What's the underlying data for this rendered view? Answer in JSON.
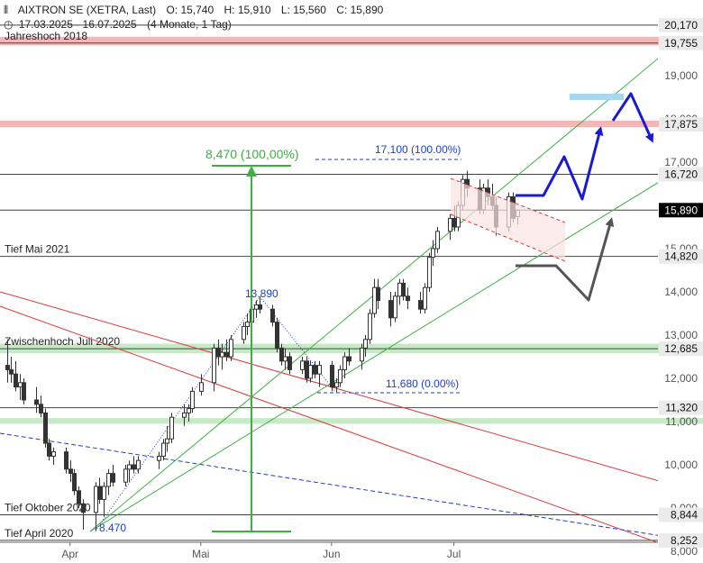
{
  "header": {
    "icon": "candlestick-icon",
    "instrument": "AIXTRON SE (XETRA, Last)",
    "open": "O: 15,740",
    "high": "H: 15,910",
    "low": "L: 15,560",
    "close": "C: 15,890",
    "clock_icon": "clock-icon",
    "period": "17.03.2025 - 16.07.2025",
    "period_detail": "(4 Monate, 1 Tag)"
  },
  "chart_data": {
    "type": "candlestick",
    "y_range": [
      7.9,
      20.5
    ],
    "x_axis_ticks": [
      {
        "label": "Apr",
        "date": "2025-04-01"
      },
      {
        "label": "Mai",
        "date": "2025-05-02"
      },
      {
        "label": "Jun",
        "date": "2025-06-02"
      },
      {
        "label": "Jul",
        "date": "2025-07-01"
      }
    ],
    "y_axis_ticks": [
      {
        "value": 10.0,
        "label": "10,000"
      },
      {
        "value": 11.0,
        "label": "11,000"
      },
      {
        "value": 12.0,
        "label": "12,000"
      },
      {
        "value": 13.0,
        "label": "13,000"
      },
      {
        "value": 14.0,
        "label": "14,000"
      },
      {
        "value": 15.0,
        "label": "15,000"
      },
      {
        "value": 17.0,
        "label": "17,000"
      },
      {
        "value": 18.0,
        "label": "18,000"
      },
      {
        "value": 19.0,
        "label": "19,000"
      },
      {
        "value": 8.0,
        "label": "8,000"
      },
      {
        "value": 9.0,
        "label": "9,000"
      }
    ],
    "price_badges": [
      {
        "value": 20.17,
        "label": "20,170"
      },
      {
        "value": 19.755,
        "label": "19,755"
      },
      {
        "value": 17.875,
        "label": "17,875"
      },
      {
        "value": 16.72,
        "label": "16,720"
      },
      {
        "value": 15.89,
        "label": "15,890",
        "current": true
      },
      {
        "value": 14.82,
        "label": "14,820"
      },
      {
        "value": 12.685,
        "label": "12,685"
      },
      {
        "value": 11.32,
        "label": "11,320"
      },
      {
        "value": 8.844,
        "label": "8,844"
      },
      {
        "value": 8.252,
        "label": "8,252"
      }
    ],
    "horizontal_levels": [
      {
        "value": 19.755,
        "label": "Jahreshoch 2018"
      },
      {
        "value": 14.82,
        "label": "Tief Mai 2021"
      },
      {
        "value": 12.685,
        "label": "Zwischenhoch Juli 2020"
      },
      {
        "value": 8.844,
        "label": "Tief Oktober 2020"
      },
      {
        "value": 8.252,
        "label": "Tief April 2020"
      }
    ],
    "plain_levels": [
      20.17,
      16.72,
      15.89,
      11.32
    ],
    "zones": [
      {
        "from": 19.7,
        "to": 19.9,
        "color": "#f4b7b7"
      },
      {
        "from": 17.81,
        "to": 17.96,
        "color": "#f4b7b7"
      },
      {
        "from": 12.58,
        "to": 12.8,
        "color": "#c6e9c6"
      },
      {
        "from": 10.95,
        "to": 11.08,
        "color": "#c6e9c6"
      }
    ],
    "annotations": [
      {
        "text": "8,470 (100,00%)",
        "color": "#3cb043"
      },
      {
        "text": "17,100 (100.00%)",
        "color": "#1a3fd6"
      },
      {
        "text": "13.890",
        "color": "#1a3fd6"
      },
      {
        "text": "11,680 (0.00%)",
        "color": "#1a3fd6"
      },
      {
        "text": "8.470",
        "color": "#1a3fd6"
      }
    ],
    "candles": [
      {
        "date": "2025-03-17",
        "open": 12.3,
        "high": 12.9,
        "low": 11.9,
        "close": 12.2
      },
      {
        "date": "2025-03-18",
        "open": 12.2,
        "high": 12.5,
        "low": 11.9,
        "close": 12.1
      },
      {
        "date": "2025-03-19",
        "open": 12.1,
        "high": 12.4,
        "low": 11.7,
        "close": 11.8
      },
      {
        "date": "2025-03-20",
        "open": 11.8,
        "high": 12.1,
        "low": 11.5,
        "close": 11.9
      },
      {
        "date": "2025-03-21",
        "open": 11.9,
        "high": 12.0,
        "low": 11.4,
        "close": 11.5
      },
      {
        "date": "2025-03-24",
        "open": 11.5,
        "high": 11.8,
        "low": 11.2,
        "close": 11.4
      },
      {
        "date": "2025-03-25",
        "open": 11.4,
        "high": 11.6,
        "low": 11.1,
        "close": 11.2
      },
      {
        "date": "2025-03-26",
        "open": 11.2,
        "high": 11.3,
        "low": 10.4,
        "close": 10.5
      },
      {
        "date": "2025-03-27",
        "open": 10.5,
        "high": 10.6,
        "low": 10.1,
        "close": 10.2
      },
      {
        "date": "2025-03-28",
        "open": 10.2,
        "high": 10.4,
        "low": 10.0,
        "close": 10.3
      },
      {
        "date": "2025-03-31",
        "open": 10.3,
        "high": 10.4,
        "low": 9.8,
        "close": 9.9
      },
      {
        "date": "2025-04-01",
        "open": 9.9,
        "high": 10.1,
        "low": 9.6,
        "close": 9.8
      },
      {
        "date": "2025-04-02",
        "open": 9.8,
        "high": 9.9,
        "low": 9.3,
        "close": 9.4
      },
      {
        "date": "2025-04-03",
        "open": 9.4,
        "high": 9.5,
        "low": 9.0,
        "close": 9.1
      },
      {
        "date": "2025-04-04",
        "open": 9.1,
        "high": 9.2,
        "low": 8.5,
        "close": 8.9
      },
      {
        "date": "2025-04-07",
        "open": 8.9,
        "high": 9.6,
        "low": 8.47,
        "close": 9.5
      },
      {
        "date": "2025-04-08",
        "open": 9.5,
        "high": 9.7,
        "low": 9.1,
        "close": 9.2
      },
      {
        "date": "2025-04-09",
        "open": 9.2,
        "high": 9.6,
        "low": 8.8,
        "close": 9.5
      },
      {
        "date": "2025-04-10",
        "open": 9.5,
        "high": 9.9,
        "low": 9.3,
        "close": 9.8
      },
      {
        "date": "2025-04-11",
        "open": 9.8,
        "high": 10.0,
        "low": 9.5,
        "close": 9.6
      },
      {
        "date": "2025-04-14",
        "open": 9.6,
        "high": 10.0,
        "low": 9.5,
        "close": 9.9
      },
      {
        "date": "2025-04-15",
        "open": 9.9,
        "high": 10.1,
        "low": 9.6,
        "close": 10.0
      },
      {
        "date": "2025-04-16",
        "open": 10.0,
        "high": 10.2,
        "low": 9.8,
        "close": 9.9
      },
      {
        "date": "2025-04-17",
        "open": 9.9,
        "high": 10.2,
        "low": 9.8,
        "close": 10.1
      },
      {
        "date": "2025-04-22",
        "open": 10.1,
        "high": 10.3,
        "low": 9.9,
        "close": 10.2
      },
      {
        "date": "2025-04-23",
        "open": 10.2,
        "high": 10.6,
        "low": 10.1,
        "close": 10.5
      },
      {
        "date": "2025-04-24",
        "open": 10.5,
        "high": 10.9,
        "low": 10.3,
        "close": 10.6
      },
      {
        "date": "2025-04-25",
        "open": 10.6,
        "high": 11.2,
        "low": 10.5,
        "close": 11.1
      },
      {
        "date": "2025-04-28",
        "open": 11.1,
        "high": 11.4,
        "low": 10.9,
        "close": 11.2
      },
      {
        "date": "2025-04-29",
        "open": 11.2,
        "high": 11.4,
        "low": 11.0,
        "close": 11.3
      },
      {
        "date": "2025-04-30",
        "open": 11.3,
        "high": 11.8,
        "low": 11.2,
        "close": 11.7
      },
      {
        "date": "2025-05-02",
        "open": 11.7,
        "high": 12.1,
        "low": 11.6,
        "close": 11.9
      },
      {
        "date": "2025-05-05",
        "open": 11.9,
        "high": 12.8,
        "low": 11.7,
        "close": 12.7
      },
      {
        "date": "2025-05-06",
        "open": 12.7,
        "high": 12.9,
        "low": 12.3,
        "close": 12.5
      },
      {
        "date": "2025-05-07",
        "open": 12.5,
        "high": 12.8,
        "low": 12.2,
        "close": 12.6
      },
      {
        "date": "2025-05-08",
        "open": 12.6,
        "high": 12.9,
        "low": 12.4,
        "close": 12.5
      },
      {
        "date": "2025-05-09",
        "open": 12.5,
        "high": 13.0,
        "low": 12.4,
        "close": 12.9
      },
      {
        "date": "2025-05-12",
        "open": 12.9,
        "high": 13.3,
        "low": 12.8,
        "close": 13.2
      },
      {
        "date": "2025-05-13",
        "open": 13.2,
        "high": 13.5,
        "low": 13.0,
        "close": 13.3
      },
      {
        "date": "2025-05-14",
        "open": 13.3,
        "high": 13.7,
        "low": 13.1,
        "close": 13.6
      },
      {
        "date": "2025-05-15",
        "open": 13.6,
        "high": 13.8,
        "low": 13.4,
        "close": 13.7
      },
      {
        "date": "2025-05-16",
        "open": 13.7,
        "high": 13.89,
        "low": 13.5,
        "close": 13.6
      },
      {
        "date": "2025-05-19",
        "open": 13.6,
        "high": 13.7,
        "low": 13.2,
        "close": 13.3
      },
      {
        "date": "2025-05-20",
        "open": 13.3,
        "high": 13.4,
        "low": 12.6,
        "close": 12.7
      },
      {
        "date": "2025-05-21",
        "open": 12.7,
        "high": 12.8,
        "low": 12.3,
        "close": 12.4
      },
      {
        "date": "2025-05-22",
        "open": 12.4,
        "high": 12.7,
        "low": 12.2,
        "close": 12.5
      },
      {
        "date": "2025-05-23",
        "open": 12.5,
        "high": 12.6,
        "low": 12.1,
        "close": 12.2
      },
      {
        "date": "2025-05-26",
        "open": 12.2,
        "high": 12.5,
        "low": 12.1,
        "close": 12.4
      },
      {
        "date": "2025-05-27",
        "open": 12.4,
        "high": 12.5,
        "low": 11.9,
        "close": 12.0
      },
      {
        "date": "2025-05-28",
        "open": 12.0,
        "high": 12.4,
        "low": 11.9,
        "close": 12.3
      },
      {
        "date": "2025-05-29",
        "open": 12.3,
        "high": 12.4,
        "low": 12.0,
        "close": 12.1
      },
      {
        "date": "2025-05-30",
        "open": 12.1,
        "high": 12.4,
        "low": 11.8,
        "close": 12.3
      },
      {
        "date": "2025-06-02",
        "open": 12.3,
        "high": 12.4,
        "low": 11.7,
        "close": 11.8
      },
      {
        "date": "2025-06-03",
        "open": 11.8,
        "high": 12.0,
        "low": 11.68,
        "close": 11.9
      },
      {
        "date": "2025-06-04",
        "open": 11.9,
        "high": 12.3,
        "low": 11.8,
        "close": 12.2
      },
      {
        "date": "2025-06-05",
        "open": 12.2,
        "high": 12.6,
        "low": 12.0,
        "close": 12.5
      },
      {
        "date": "2025-06-06",
        "open": 12.5,
        "high": 12.7,
        "low": 12.3,
        "close": 12.4
      },
      {
        "date": "2025-06-09",
        "open": 12.4,
        "high": 12.8,
        "low": 12.2,
        "close": 12.7
      },
      {
        "date": "2025-06-10",
        "open": 12.7,
        "high": 13.0,
        "low": 12.5,
        "close": 12.9
      },
      {
        "date": "2025-06-11",
        "open": 12.9,
        "high": 13.6,
        "low": 12.8,
        "close": 13.5
      },
      {
        "date": "2025-06-12",
        "open": 13.5,
        "high": 14.3,
        "low": 13.4,
        "close": 14.1
      },
      {
        "date": "2025-06-13",
        "open": 14.1,
        "high": 14.3,
        "low": 13.6,
        "close": 13.8
      },
      {
        "date": "2025-06-16",
        "open": 13.8,
        "high": 14.0,
        "low": 13.2,
        "close": 13.4
      },
      {
        "date": "2025-06-17",
        "open": 13.4,
        "high": 14.0,
        "low": 13.3,
        "close": 13.9
      },
      {
        "date": "2025-06-18",
        "open": 13.9,
        "high": 14.3,
        "low": 13.7,
        "close": 14.2
      },
      {
        "date": "2025-06-19",
        "open": 14.2,
        "high": 14.3,
        "low": 13.8,
        "close": 13.9
      },
      {
        "date": "2025-06-20",
        "open": 13.9,
        "high": 14.1,
        "low": 13.6,
        "close": 13.8
      },
      {
        "date": "2025-06-23",
        "open": 13.8,
        "high": 14.0,
        "low": 13.5,
        "close": 13.6
      },
      {
        "date": "2025-06-24",
        "open": 13.6,
        "high": 14.2,
        "low": 13.5,
        "close": 14.1
      },
      {
        "date": "2025-06-25",
        "open": 14.1,
        "high": 14.9,
        "low": 14.0,
        "close": 14.8
      },
      {
        "date": "2025-06-26",
        "open": 14.8,
        "high": 15.2,
        "low": 14.6,
        "close": 15.0
      },
      {
        "date": "2025-06-27",
        "open": 15.0,
        "high": 15.5,
        "low": 14.9,
        "close": 15.4
      },
      {
        "date": "2025-06-30",
        "open": 15.4,
        "high": 15.8,
        "low": 15.2,
        "close": 15.7
      },
      {
        "date": "2025-07-01",
        "open": 15.7,
        "high": 16.0,
        "low": 15.4,
        "close": 15.5
      },
      {
        "date": "2025-07-02",
        "open": 15.5,
        "high": 16.1,
        "low": 15.4,
        "close": 16.0
      },
      {
        "date": "2025-07-03",
        "open": 16.0,
        "high": 16.7,
        "low": 15.9,
        "close": 16.6
      },
      {
        "date": "2025-07-04",
        "open": 16.6,
        "high": 16.8,
        "low": 16.2,
        "close": 16.4
      },
      {
        "date": "2025-07-07",
        "open": 16.4,
        "high": 16.6,
        "low": 15.8,
        "close": 15.9
      },
      {
        "date": "2025-07-08",
        "open": 15.9,
        "high": 16.5,
        "low": 15.8,
        "close": 16.4
      },
      {
        "date": "2025-07-09",
        "open": 16.4,
        "high": 16.6,
        "low": 16.0,
        "close": 16.2
      },
      {
        "date": "2025-07-10",
        "open": 16.2,
        "high": 16.5,
        "low": 15.9,
        "close": 16.0
      },
      {
        "date": "2025-07-11",
        "open": 16.0,
        "high": 16.2,
        "low": 15.3,
        "close": 15.5
      },
      {
        "date": "2025-07-14",
        "open": 15.5,
        "high": 16.3,
        "low": 15.4,
        "close": 16.2
      },
      {
        "date": "2025-07-15",
        "open": 16.2,
        "high": 16.3,
        "low": 15.6,
        "close": 15.7
      },
      {
        "date": "2025-07-16",
        "open": 15.74,
        "high": 15.91,
        "low": 15.56,
        "close": 15.89
      }
    ]
  },
  "colors": {
    "candle": "#333333",
    "level_line": "#444444",
    "trend_red": "#d93a3a",
    "trend_green": "#3cb043",
    "trend_blue": "#1a3fd6",
    "arrow_blue": "#1a1ad6",
    "arrow_gray": "#555555",
    "target_box": "#a8d8ef",
    "badge_bg": "#ebebeb",
    "current_badge_bg": "#000000"
  }
}
